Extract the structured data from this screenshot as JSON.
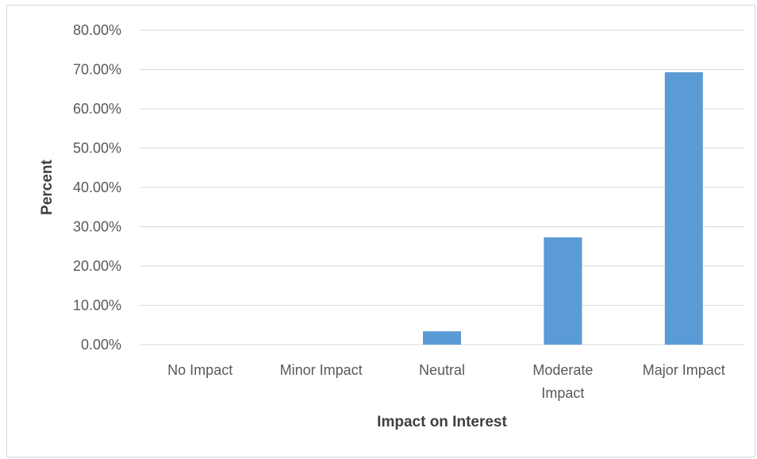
{
  "chart_data": {
    "type": "bar",
    "title": "",
    "xlabel": "Impact on Interest",
    "ylabel": "Percent",
    "categories": [
      "No Impact",
      "Minor Impact",
      "Neutral",
      "Moderate Impact",
      "Major Impact"
    ],
    "category_label_lines": [
      [
        "No Impact"
      ],
      [
        "Minor Impact"
      ],
      [
        "Neutral"
      ],
      [
        "Moderate",
        "Impact"
      ],
      [
        "Major Impact"
      ]
    ],
    "values": [
      0.0,
      0.0,
      3.4,
      27.3,
      69.3
    ],
    "ylim": [
      0,
      80
    ],
    "yticks": [
      0,
      10,
      20,
      30,
      40,
      50,
      60,
      70,
      80
    ],
    "ytick_labels": [
      "0.00%",
      "10.00%",
      "20.00%",
      "30.00%",
      "40.00%",
      "50.00%",
      "60.00%",
      "70.00%",
      "80.00%"
    ],
    "grid": true,
    "legend": "none",
    "bar_color": "#5b9bd5",
    "gridline_color": "#d9d9d9"
  }
}
